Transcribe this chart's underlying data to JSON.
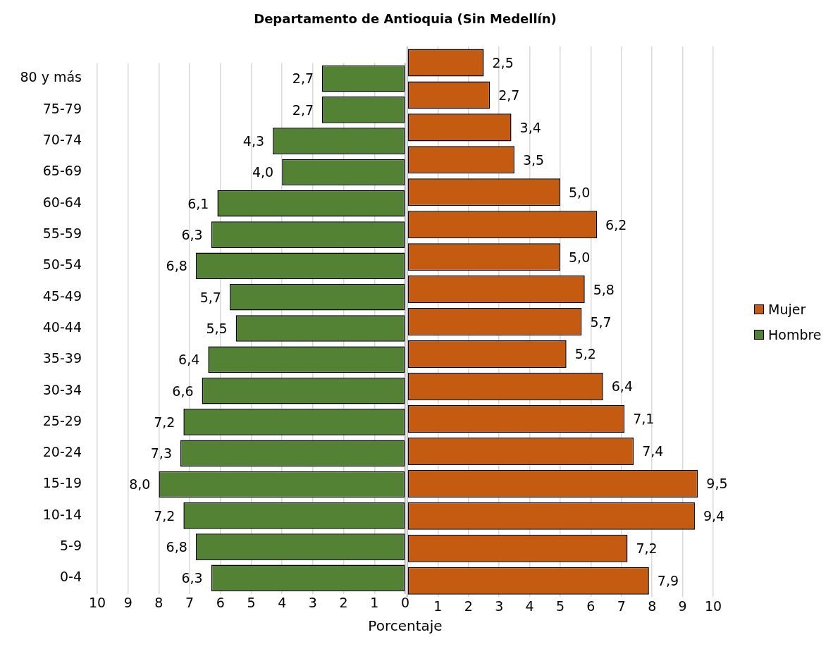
{
  "chart_data": [
    {
      "type": "bar",
      "orientation": "horizontal",
      "title": "Departamento de Antioquia (Sin Medellín)",
      "xlabel": "Porcentaje",
      "categories": [
        "80 y más",
        "75-79",
        "70-74",
        "65-69",
        "60-64",
        "55-59",
        "50-54",
        "45-49",
        "40-44",
        "35-39",
        "30-34",
        "25-29",
        "20-24",
        "15-19",
        "10-14",
        "5-9",
        "0-4"
      ],
      "series": [
        {
          "name": "Hombre",
          "color": "#548235",
          "values": [
            2.7,
            2.7,
            4.3,
            4.0,
            6.1,
            6.3,
            6.8,
            5.7,
            5.5,
            6.4,
            6.6,
            7.2,
            7.3,
            8.0,
            7.2,
            6.8,
            6.3
          ],
          "value_labels": [
            "2,7",
            "2,7",
            "4,3",
            "4,0",
            "6,1",
            "6,3",
            "6,8",
            "5,7",
            "5,5",
            "6,4",
            "6,6",
            "7,2",
            "7,3",
            "8,0",
            "7,2",
            "6,8",
            "6,3"
          ]
        }
      ],
      "xlim": [
        10,
        0
      ],
      "xticks": [
        10,
        9,
        8,
        7,
        6,
        5,
        4,
        3,
        2,
        1,
        0
      ],
      "grid": "x",
      "legend": "right"
    },
    {
      "type": "bar",
      "orientation": "horizontal",
      "categories": [
        null,
        null,
        null,
        null,
        null,
        null,
        null,
        null,
        null,
        null,
        null,
        null,
        null,
        null,
        null,
        null,
        null
      ],
      "series": [
        {
          "name": "Mujer",
          "color": "#c55a11",
          "values": [
            2.5,
            2.7,
            3.4,
            3.5,
            5.0,
            6.2,
            5.0,
            5.8,
            5.7,
            5.2,
            6.4,
            7.1,
            7.4,
            9.5,
            9.4,
            7.2,
            7.9
          ],
          "value_labels": [
            "2,5",
            "2,7",
            "3,4",
            "3,5",
            "5,0",
            "6,2",
            "5,0",
            "5,8",
            "5,7",
            "5,2",
            "6,4",
            "7,1",
            "7,4",
            "9,5",
            "9,4",
            "7,2",
            "7,9"
          ]
        }
      ],
      "xlim": [
        0,
        10
      ],
      "xticks": [
        {
          "value": 0,
          "label": null
        },
        1,
        2,
        3,
        4,
        5,
        6,
        7,
        8,
        9,
        10
      ],
      "grid": "x",
      "legend": "right",
      "tick_labels": "x"
    }
  ]
}
